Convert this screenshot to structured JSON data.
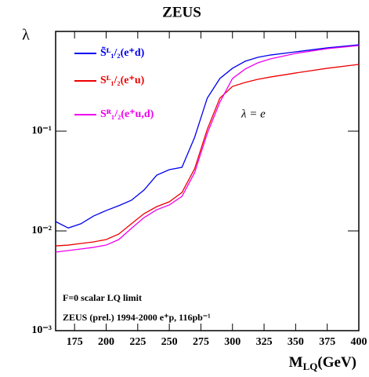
{
  "chart_data": {
    "type": "line",
    "title": "ZEUS",
    "y_label": "λ",
    "x_label": [
      "M",
      "LQ",
      "(GeV)"
    ],
    "log_y": true,
    "legend": "upper left",
    "x": [
      160,
      170,
      180,
      190,
      200,
      210,
      220,
      230,
      240,
      250,
      260,
      270,
      280,
      290,
      300,
      310,
      320,
      330,
      350,
      375,
      400
    ],
    "series": [
      {
        "name": "S̃ᴸ₁/₂(e⁺d)",
        "color": "#0000ee",
        "values": [
          0.0124,
          0.0107,
          0.0118,
          0.0141,
          0.016,
          0.0179,
          0.0203,
          0.0257,
          0.0362,
          0.0411,
          0.0434,
          0.0865,
          0.214,
          0.337,
          0.427,
          0.502,
          0.55,
          0.58,
          0.624,
          0.684,
          0.735
        ]
      },
      {
        "name": "Sᴸ₁/₂(e⁺u)",
        "color": "#ee0000",
        "values": [
          0.00708,
          0.00721,
          0.00748,
          0.00776,
          0.00819,
          0.00931,
          0.0118,
          0.0149,
          0.0175,
          0.0196,
          0.0243,
          0.0419,
          0.104,
          0.214,
          0.281,
          0.308,
          0.331,
          0.349,
          0.383,
          0.427,
          0.467
        ]
      },
      {
        "name": "Sᴿ₁/₂(e⁺u,d)",
        "color": "#ee00ee",
        "values": [
          0.00613,
          0.00636,
          0.00659,
          0.00684,
          0.00721,
          0.00819,
          0.0106,
          0.0136,
          0.0163,
          0.0182,
          0.0222,
          0.0383,
          0.0947,
          0.195,
          0.337,
          0.419,
          0.484,
          0.53,
          0.602,
          0.671,
          0.722
        ]
      }
    ],
    "xlim": [
      160,
      400
    ],
    "xticks": [
      175,
      200,
      225,
      250,
      275,
      300,
      325,
      350,
      375,
      400
    ],
    "ylim": [
      0.001,
      1
    ],
    "yticks": [
      {
        "value": 0.1,
        "label": "10⁻¹"
      },
      {
        "value": 0.01,
        "label": "10⁻²"
      },
      {
        "value": 0.001,
        "label": "10⁻³"
      }
    ],
    "annotations": [
      "λ = e",
      "F=0 scalar LQ limit",
      "ZEUS (prel.) 1994-2000 e⁺p, 116pb⁻¹"
    ]
  }
}
